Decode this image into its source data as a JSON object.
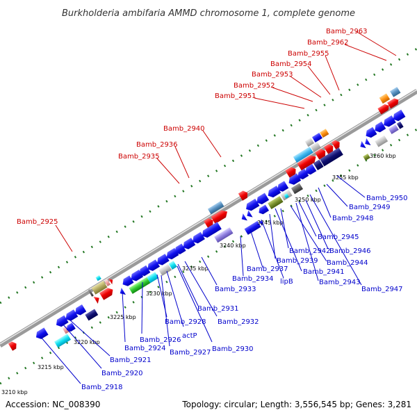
{
  "title": "Burkholderia ambifaria AMMD chromosome 1, complete genome",
  "accession": "Accession: NC_008390",
  "summary": "Topology: circular; Length: 3,556,545 bp; Genes: 3,281",
  "colors": {
    "backbone": "#8a8a8a",
    "forward_dots": "#227722",
    "reverse_dots": "#227722",
    "red_label": "#cc0000",
    "blue_label": "#0000cc"
  },
  "ticks": [
    {
      "kbp": 3210,
      "label": "3210 kbp"
    },
    {
      "kbp": 3215,
      "label": "3215 kbp"
    },
    {
      "kbp": 3220,
      "label": "3220 kbp"
    },
    {
      "kbp": 3225,
      "label": "3225 kbp"
    },
    {
      "kbp": 3230,
      "label": "3230 kbp"
    },
    {
      "kbp": 3235,
      "label": "3235 kbp"
    },
    {
      "kbp": 3240,
      "label": "3240 kbp"
    },
    {
      "kbp": 3245,
      "label": "3245 kbp"
    },
    {
      "kbp": 3250,
      "label": "3250 kbp"
    },
    {
      "kbp": 3255,
      "label": "3255 kbp"
    },
    {
      "kbp": 3260,
      "label": "3260 kbp"
    }
  ],
  "upper_labels": [
    "Bamb_2963",
    "Bamb_2962",
    "Bamb_2955",
    "Bamb_2954",
    "Bamb_2953",
    "Bamb_2952",
    "Bamb_2951",
    "Bamb_2940",
    "Bamb_2936",
    "Bamb_2935",
    "Bamb_2925"
  ],
  "lower_labels": [
    "Bamb_2950",
    "Bamb_2949",
    "Bamb_2948",
    "Bamb_2945",
    "Bamb_2946",
    "Bamb_2942",
    "Bamb_2944",
    "Bamb_2939",
    "Bamb_2941",
    "Bamb_2943",
    "Bamb_2947",
    "Bamb_2937",
    "Bamb_2934",
    "lipB",
    "Bamb_2933",
    "Bamb_2931",
    "Bamb_2932",
    "Bamb_2928",
    "actP",
    "Bamb_2926",
    "Bamb_2924",
    "Bamb_2930",
    "Bamb_2927",
    "Bamb_2921",
    "Bamb_2920",
    "Bamb_2918"
  ]
}
